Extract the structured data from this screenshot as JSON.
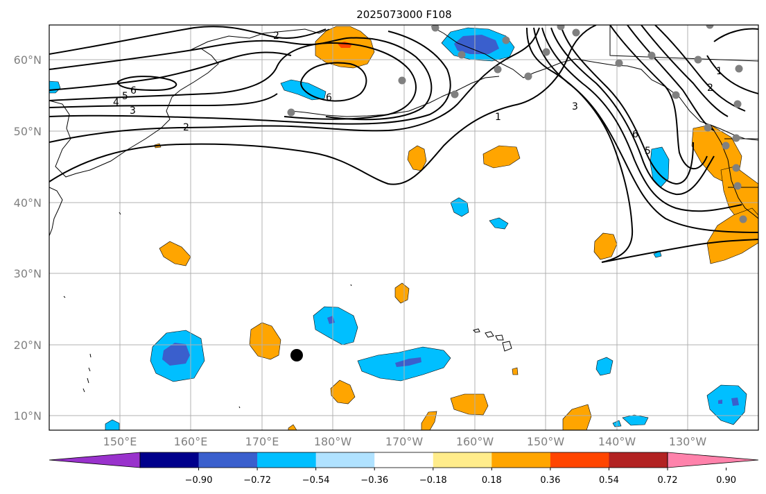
{
  "title": "2025073000 F108",
  "lat_labels": [
    "60°N",
    "50°N",
    "40°N",
    "30°N",
    "20°N",
    "10°N"
  ],
  "lon_labels": [
    "150°E",
    "160°E",
    "170°E",
    "180°W",
    "170°W",
    "160°W",
    "150°W",
    "140°W",
    "130°W"
  ],
  "colorbar": {
    "tick_labels": [
      "−0.90",
      "−0.72",
      "−0.54",
      "−0.36",
      "−0.18",
      "0.18",
      "0.36",
      "0.54",
      "0.72",
      "0.90"
    ],
    "colors": [
      "#9932cc",
      "#00008b",
      "#3a5fcd",
      "#00bfff",
      "#b0e2ff",
      "#ffffff",
      "#ffec8b",
      "#ffa500",
      "#ff4500",
      "#b22222",
      "#ff82ab"
    ]
  },
  "contour_labels": [
    "2",
    "6",
    "6",
    "5",
    "4",
    "3",
    "2",
    "1",
    "3",
    "6",
    "5",
    "1",
    "2"
  ],
  "colors": {
    "neg_light": "#00bfff",
    "neg_dark": "#3a5fcd",
    "pos": "#ffa500",
    "pos_strong": "#ff4500",
    "station": "#808080",
    "marker": "#000000"
  }
}
